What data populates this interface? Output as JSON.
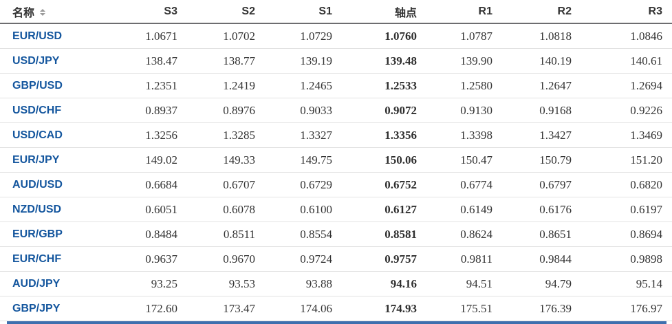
{
  "table": {
    "columns": [
      {
        "key": "name",
        "label": "名称"
      },
      {
        "key": "s3",
        "label": "S3"
      },
      {
        "key": "s2",
        "label": "S2"
      },
      {
        "key": "s1",
        "label": "S1"
      },
      {
        "key": "pivot",
        "label": "轴点"
      },
      {
        "key": "r1",
        "label": "R1"
      },
      {
        "key": "r2",
        "label": "R2"
      },
      {
        "key": "r3",
        "label": "R3"
      }
    ],
    "rows": [
      {
        "name": "EUR/USD",
        "values": [
          "1.0671",
          "1.0702",
          "1.0729",
          "1.0760",
          "1.0787",
          "1.0818",
          "1.0846"
        ]
      },
      {
        "name": "USD/JPY",
        "values": [
          "138.47",
          "138.77",
          "139.19",
          "139.48",
          "139.90",
          "140.19",
          "140.61"
        ]
      },
      {
        "name": "GBP/USD",
        "values": [
          "1.2351",
          "1.2419",
          "1.2465",
          "1.2533",
          "1.2580",
          "1.2647",
          "1.2694"
        ]
      },
      {
        "name": "USD/CHF",
        "values": [
          "0.8937",
          "0.8976",
          "0.9033",
          "0.9072",
          "0.9130",
          "0.9168",
          "0.9226"
        ]
      },
      {
        "name": "USD/CAD",
        "values": [
          "1.3256",
          "1.3285",
          "1.3327",
          "1.3356",
          "1.3398",
          "1.3427",
          "1.3469"
        ]
      },
      {
        "name": "EUR/JPY",
        "values": [
          "149.02",
          "149.33",
          "149.75",
          "150.06",
          "150.47",
          "150.79",
          "151.20"
        ]
      },
      {
        "name": "AUD/USD",
        "values": [
          "0.6684",
          "0.6707",
          "0.6729",
          "0.6752",
          "0.6774",
          "0.6797",
          "0.6820"
        ]
      },
      {
        "name": "NZD/USD",
        "values": [
          "0.6051",
          "0.6078",
          "0.6100",
          "0.6127",
          "0.6149",
          "0.6176",
          "0.6197"
        ]
      },
      {
        "name": "EUR/GBP",
        "values": [
          "0.8484",
          "0.8511",
          "0.8554",
          "0.8581",
          "0.8624",
          "0.8651",
          "0.8694"
        ]
      },
      {
        "name": "EUR/CHF",
        "values": [
          "0.9637",
          "0.9670",
          "0.9724",
          "0.9757",
          "0.9811",
          "0.9844",
          "0.9898"
        ]
      },
      {
        "name": "AUD/JPY",
        "values": [
          "93.25",
          "93.53",
          "93.88",
          "94.16",
          "94.51",
          "94.79",
          "95.14"
        ]
      },
      {
        "name": "GBP/JPY",
        "values": [
          "172.60",
          "173.47",
          "174.06",
          "174.93",
          "175.51",
          "176.39",
          "176.97"
        ]
      }
    ]
  },
  "icons": {
    "sort": "sort-both-arrows"
  },
  "colors": {
    "pair_link": "#14569e",
    "header_text": "#333333",
    "cell_text": "#333333",
    "header_rule": "#6d6d70",
    "row_separator": "#e2e2e2",
    "accent_bar": "#3e6fae"
  }
}
